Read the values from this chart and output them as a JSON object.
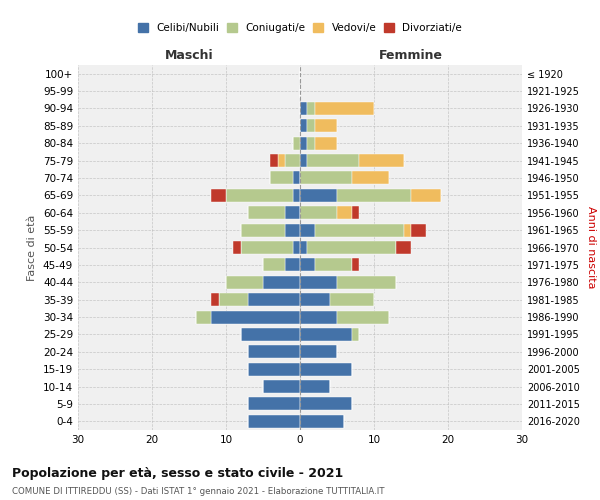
{
  "age_groups": [
    "0-4",
    "5-9",
    "10-14",
    "15-19",
    "20-24",
    "25-29",
    "30-34",
    "35-39",
    "40-44",
    "45-49",
    "50-54",
    "55-59",
    "60-64",
    "65-69",
    "70-74",
    "75-79",
    "80-84",
    "85-89",
    "90-94",
    "95-99",
    "100+"
  ],
  "birth_years": [
    "2016-2020",
    "2011-2015",
    "2006-2010",
    "2001-2005",
    "1996-2000",
    "1991-1995",
    "1986-1990",
    "1981-1985",
    "1976-1980",
    "1971-1975",
    "1966-1970",
    "1961-1965",
    "1956-1960",
    "1951-1955",
    "1946-1950",
    "1941-1945",
    "1936-1940",
    "1931-1935",
    "1926-1930",
    "1921-1925",
    "≤ 1920"
  ],
  "colors": {
    "celibi": "#4472a8",
    "coniugati": "#b5c98e",
    "vedovi": "#f0bc5e",
    "divorziati": "#c0392b"
  },
  "males": {
    "celibi": [
      7,
      7,
      5,
      7,
      7,
      8,
      12,
      7,
      5,
      2,
      1,
      2,
      2,
      1,
      1,
      0,
      0,
      0,
      0,
      0,
      0
    ],
    "coniugati": [
      0,
      0,
      0,
      0,
      0,
      0,
      2,
      4,
      5,
      3,
      7,
      6,
      5,
      9,
      3,
      2,
      1,
      0,
      0,
      0,
      0
    ],
    "vedovi": [
      0,
      0,
      0,
      0,
      0,
      0,
      0,
      0,
      0,
      0,
      0,
      0,
      0,
      0,
      0,
      1,
      0,
      0,
      0,
      0,
      0
    ],
    "divorziati": [
      0,
      0,
      0,
      0,
      0,
      0,
      0,
      1,
      0,
      0,
      1,
      0,
      0,
      2,
      0,
      1,
      0,
      0,
      0,
      0,
      0
    ]
  },
  "females": {
    "celibi": [
      6,
      7,
      4,
      7,
      5,
      7,
      5,
      4,
      5,
      2,
      1,
      2,
      0,
      5,
      0,
      1,
      1,
      1,
      1,
      0,
      0
    ],
    "coniugati": [
      0,
      0,
      0,
      0,
      0,
      1,
      7,
      6,
      8,
      5,
      12,
      12,
      5,
      10,
      7,
      7,
      1,
      1,
      1,
      0,
      0
    ],
    "vedovi": [
      0,
      0,
      0,
      0,
      0,
      0,
      0,
      0,
      0,
      0,
      0,
      1,
      2,
      4,
      5,
      6,
      3,
      3,
      8,
      0,
      0
    ],
    "divorziati": [
      0,
      0,
      0,
      0,
      0,
      0,
      0,
      0,
      0,
      1,
      2,
      2,
      1,
      0,
      0,
      0,
      0,
      0,
      0,
      0,
      0
    ]
  },
  "xlim": 30,
  "title": "Popolazione per età, sesso e stato civile - 2021",
  "subtitle": "COMUNE DI ITTIREDDU (SS) - Dati ISTAT 1° gennaio 2021 - Elaborazione TUTTITALIA.IT",
  "ylabel_left": "Fasce di età",
  "ylabel_right": "Anni di nascita",
  "xlabel_left": "Maschi",
  "xlabel_right": "Femmine",
  "bg_color": "#f0f0f0"
}
